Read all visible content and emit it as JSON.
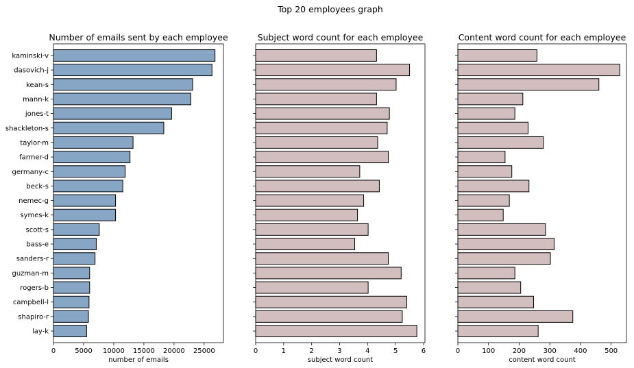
{
  "figure_title": "Top 20 employees graph",
  "employees": [
    "kaminski-v",
    "dasovich-j",
    "kean-s",
    "mann-k",
    "jones-t",
    "shackleton-s",
    "taylor-m",
    "farmer-d",
    "germany-c",
    "beck-s",
    "nemec-g",
    "symes-k",
    "scott-s",
    "bass-e",
    "sanders-r",
    "guzman-m",
    "rogers-b",
    "campbell-l",
    "shapiro-r",
    "lay-k"
  ],
  "colors": {
    "panel1_bar": "#87a5c5",
    "panel2_bar": "#d2bebe",
    "bar_edge": "#000000"
  },
  "chart_data": [
    {
      "type": "bar",
      "orientation": "horizontal",
      "title": "Number of emails sent by each employee",
      "xlabel": "number of emails",
      "ylabel": "",
      "categories": [
        "kaminski-v",
        "dasovich-j",
        "kean-s",
        "mann-k",
        "jones-t",
        "shackleton-s",
        "taylor-m",
        "farmer-d",
        "germany-c",
        "beck-s",
        "nemec-g",
        "symes-k",
        "scott-s",
        "bass-e",
        "sanders-r",
        "guzman-m",
        "rogers-b",
        "campbell-l",
        "shapiro-r",
        "lay-k"
      ],
      "values": [
        26800,
        26300,
        23100,
        22800,
        19600,
        18300,
        13200,
        12700,
        11900,
        11500,
        10300,
        10300,
        7600,
        7100,
        6900,
        6000,
        6000,
        5900,
        5800,
        5500
      ],
      "xlim": [
        0,
        28200
      ],
      "xticks": [
        0,
        5000,
        10000,
        15000,
        20000,
        25000
      ],
      "color": "#87a5c5",
      "grid": false
    },
    {
      "type": "bar",
      "orientation": "horizontal",
      "title": "Subject word count for each employee",
      "xlabel": "subject word count",
      "ylabel": "",
      "categories": [
        "kaminski-v",
        "dasovich-j",
        "kean-s",
        "mann-k",
        "jones-t",
        "shackleton-s",
        "taylor-m",
        "farmer-d",
        "germany-c",
        "beck-s",
        "nemec-g",
        "symes-k",
        "scott-s",
        "bass-e",
        "sanders-r",
        "guzman-m",
        "rogers-b",
        "campbell-l",
        "shapiro-r",
        "lay-k"
      ],
      "values": [
        4.32,
        5.5,
        5.02,
        4.32,
        4.78,
        4.7,
        4.36,
        4.74,
        3.72,
        4.42,
        3.86,
        3.64,
        4.02,
        3.54,
        4.74,
        5.2,
        4.02,
        5.4,
        5.24,
        5.76
      ],
      "xlim": [
        0,
        6.05
      ],
      "xticks": [
        0,
        1,
        2,
        3,
        4,
        5,
        6
      ],
      "color": "#d2bebe",
      "grid": false
    },
    {
      "type": "bar",
      "orientation": "horizontal",
      "title": "Content word count for each employee",
      "xlabel": "content word count",
      "ylabel": "",
      "categories": [
        "kaminski-v",
        "dasovich-j",
        "kean-s",
        "mann-k",
        "jones-t",
        "shackleton-s",
        "taylor-m",
        "farmer-d",
        "germany-c",
        "beck-s",
        "nemec-g",
        "symes-k",
        "scott-s",
        "bass-e",
        "sanders-r",
        "guzman-m",
        "rogers-b",
        "campbell-l",
        "shapiro-r",
        "lay-k"
      ],
      "values": [
        258,
        528,
        460,
        212,
        186,
        229,
        279,
        154,
        176,
        232,
        168,
        148,
        286,
        314,
        302,
        186,
        205,
        247,
        375,
        262
      ],
      "xlim": [
        0,
        550
      ],
      "xticks": [
        0,
        100,
        200,
        300,
        400,
        500
      ],
      "color": "#d2bebe",
      "grid": false
    }
  ]
}
